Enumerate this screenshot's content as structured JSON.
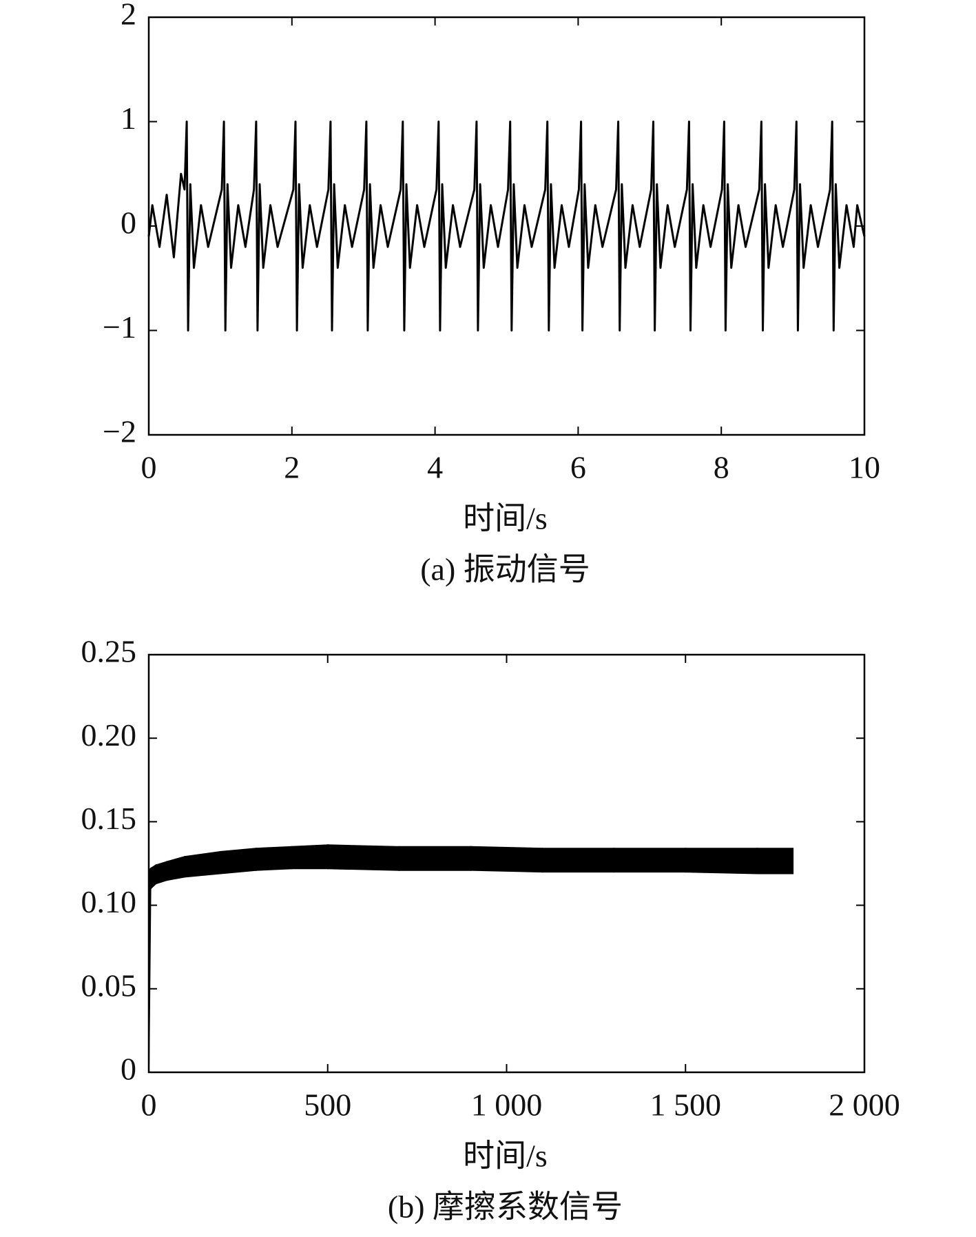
{
  "chart_data": [
    {
      "type": "line",
      "caption": "(a) 振动信号",
      "xlabel": "时间/s",
      "xlim": [
        0,
        10
      ],
      "ylim": [
        -2,
        2
      ],
      "xticks": [
        0,
        2,
        4,
        6,
        8,
        10
      ],
      "yticks": [
        {
          "value": -2,
          "label": "−2"
        },
        {
          "value": -1,
          "label": "−1"
        },
        0,
        1,
        2
      ],
      "color": "#000000",
      "x": [
        0,
        0.05,
        0.15,
        0.25,
        0.35,
        0.45,
        0.5,
        0.53,
        0.55,
        0.58,
        0.63,
        0.73,
        0.83,
        1.02,
        1.05,
        1.07,
        1.1,
        1.15,
        1.25,
        1.35,
        1.47,
        1.5,
        1.52,
        1.55,
        1.6,
        1.7,
        1.8,
        2.02,
        2.05,
        2.07,
        2.1,
        2.15,
        2.25,
        2.35,
        2.51,
        2.54,
        2.56,
        2.59,
        2.64,
        2.74,
        2.84,
        3.01,
        3.04,
        3.06,
        3.09,
        3.14,
        3.24,
        3.34,
        3.52,
        3.55,
        3.57,
        3.6,
        3.65,
        3.75,
        3.85,
        4.02,
        4.05,
        4.07,
        4.1,
        4.15,
        4.25,
        4.35,
        4.55,
        4.58,
        4.6,
        4.63,
        4.68,
        4.78,
        4.88,
        5.02,
        5.05,
        5.07,
        5.1,
        5.15,
        5.25,
        5.35,
        5.54,
        5.57,
        5.59,
        5.62,
        5.67,
        5.77,
        5.87,
        6.01,
        6.04,
        6.06,
        6.09,
        6.14,
        6.24,
        6.34,
        6.53,
        6.56,
        6.58,
        6.61,
        6.66,
        6.76,
        6.86,
        7.02,
        7.05,
        7.07,
        7.1,
        7.15,
        7.25,
        7.35,
        7.52,
        7.55,
        7.57,
        7.6,
        7.65,
        7.75,
        7.85,
        8.01,
        8.04,
        8.06,
        8.09,
        8.14,
        8.24,
        8.34,
        8.53,
        8.56,
        8.58,
        8.61,
        8.66,
        8.76,
        8.86,
        9.02,
        9.05,
        9.07,
        9.1,
        9.15,
        9.25,
        9.35,
        9.52,
        9.55,
        9.57,
        9.6,
        9.65,
        9.75,
        9.85,
        9.9,
        10
      ],
      "values": [
        -0.1,
        0.2,
        -0.2,
        0.3,
        -0.3,
        0.5,
        0.35,
        1,
        -1,
        0.4,
        -0.4,
        0.2,
        -0.2,
        0.35,
        1,
        -1,
        0.4,
        -0.4,
        0.2,
        -0.2,
        0.35,
        1,
        -1,
        0.4,
        -0.4,
        0.2,
        -0.2,
        0.35,
        1,
        -1,
        0.4,
        -0.4,
        0.2,
        -0.2,
        0.35,
        1,
        -1,
        0.4,
        -0.4,
        0.2,
        -0.2,
        0.35,
        1,
        -1,
        0.4,
        -0.4,
        0.2,
        -0.2,
        0.35,
        1,
        -1,
        0.4,
        -0.4,
        0.2,
        -0.2,
        0.35,
        1,
        -1,
        0.4,
        -0.4,
        0.2,
        -0.2,
        0.35,
        1,
        -1,
        0.4,
        -0.4,
        0.2,
        -0.2,
        0.35,
        1,
        -1,
        0.4,
        -0.4,
        0.2,
        -0.2,
        0.35,
        1,
        -1,
        0.4,
        -0.4,
        0.2,
        -0.2,
        0.35,
        1,
        -1,
        0.4,
        -0.4,
        0.2,
        -0.2,
        0.35,
        1,
        -1,
        0.4,
        -0.4,
        0.2,
        -0.2,
        0.35,
        1,
        -1,
        0.4,
        -0.4,
        0.2,
        -0.2,
        0.35,
        1,
        -1,
        0.4,
        -0.4,
        0.2,
        -0.2,
        0.35,
        1,
        -1,
        0.4,
        -0.4,
        0.2,
        -0.2,
        0.35,
        1,
        -1,
        0.4,
        -0.4,
        0.2,
        -0.2,
        0.35,
        1,
        -1,
        0.4,
        -0.4,
        0.2,
        -0.2,
        0.35,
        1,
        -1,
        0.4,
        -0.4,
        0.2,
        -0.2,
        0.2,
        -0.1
      ]
    },
    {
      "type": "band",
      "caption": "(b) 摩擦系数信号",
      "xlabel": "时间/s",
      "xlim": [
        0,
        2000
      ],
      "ylim": [
        0,
        0.25
      ],
      "xticks": [
        0,
        500,
        {
          "value": 1000,
          "label": "1 000"
        },
        {
          "value": 1500,
          "label": "1 500"
        },
        {
          "value": 2000,
          "label": "2 000"
        }
      ],
      "yticks": [
        0,
        0.05,
        {
          "value": 0.1,
          "label": "0.10"
        },
        0.15,
        {
          "value": 0.2,
          "label": "0.20"
        },
        0.25
      ],
      "color": "#000000",
      "x": [
        0,
        5,
        20,
        50,
        100,
        200,
        300,
        400,
        500,
        700,
        900,
        1100,
        1300,
        1500,
        1700,
        1800
      ],
      "upper": [
        0.12,
        0.122,
        0.124,
        0.126,
        0.129,
        0.132,
        0.134,
        0.135,
        0.136,
        0.135,
        0.135,
        0.134,
        0.134,
        0.134,
        0.134,
        0.134
      ],
      "lower": [
        0,
        0.11,
        0.113,
        0.115,
        0.117,
        0.119,
        0.121,
        0.122,
        0.122,
        0.121,
        0.121,
        0.12,
        0.12,
        0.12,
        0.119,
        0.119
      ]
    }
  ]
}
